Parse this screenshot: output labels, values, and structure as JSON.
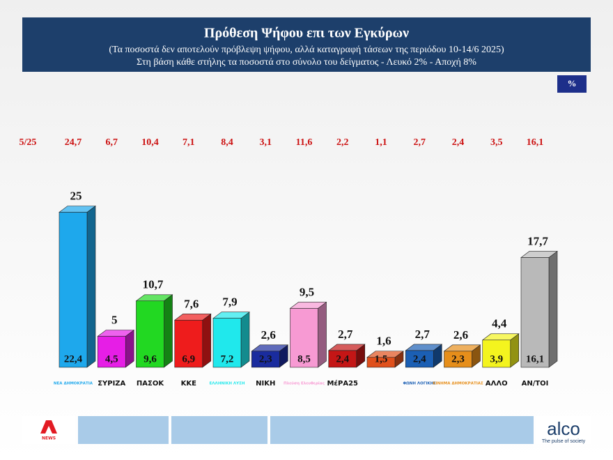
{
  "chart_data": {
    "type": "bar3d",
    "title": "Πρόθεση Ψήφου επι των Εγκύρων",
    "subtitle": "(Τα ποσοστά δεν αποτελούν πρόβλεψη ψήφου, αλλά καταγραφή τάσεων της περιόδου  10-14/6 2025)",
    "note": "Στη βάση κάθε στήλης τα ποσοστά στο σύνολο του δείγματος - Λευκό 2% - Αποχή 8%",
    "unit_badge": "%",
    "categories": [
      "ΝΕΑ ΔΗΜΟΚΡΑΤΙΑ",
      "ΣΥΡΙΖΑ",
      "ΠΑΣΟΚ",
      "ΚΚΕ",
      "ΕΛΛΗΝΙΚΗ ΛΥΣΗ",
      "ΝΙΚΗ",
      "Πλεύση Ελευθερίας",
      "ΜέΡΑ25",
      null,
      "ΦΩΝΗ ΛΟΓΙΚΗΣ",
      "ΚΙΝΗΜΑ ΔΗΜΟΚΡΑΤΙΑΣ",
      "ΑΛΛΟ",
      "ΑΝ/ΤΟΙ"
    ],
    "colors": [
      "#1ea8ec",
      "#e61ee6",
      "#22d822",
      "#ee1c1c",
      "#20e8ec",
      "#1a2c9e",
      "#f79ad3",
      "#c41616",
      "#e0501c",
      "#1b5fb4",
      "#e68e1a",
      "#f4f41e",
      "#b9b9b9"
    ],
    "series": [
      {
        "name": "5/25",
        "color": "#cc1111",
        "values": [
          24.7,
          6.7,
          10.4,
          7.1,
          8.4,
          3.1,
          11.6,
          2.2,
          1.1,
          2.7,
          2.4,
          3.5,
          16.1
        ],
        "value_labels": [
          "24,7",
          "6,7",
          "10,4",
          "7,1",
          "8,4",
          "3,1",
          "11,6",
          "2,2",
          "1,1",
          "2,7",
          "2,4",
          "3,5",
          "16,1"
        ]
      },
      {
        "values": [
          25,
          5,
          10.7,
          7.6,
          7.9,
          2.6,
          9.5,
          2.7,
          1.6,
          2.7,
          2.6,
          4.4,
          17.7
        ],
        "value_labels": [
          "25",
          "5",
          "10,7",
          "7,6",
          "7,9",
          "2,6",
          "9,5",
          "2,7",
          "1,6",
          "2,7",
          "2,6",
          "4,4",
          "17,7"
        ]
      },
      {
        "values": [
          22.4,
          4.5,
          9.6,
          6.9,
          7.2,
          2.3,
          8.5,
          2.4,
          1.5,
          2.4,
          2.3,
          3.9,
          16.1
        ],
        "value_labels": [
          "22,4",
          "4,5",
          "9,6",
          "6,9",
          "7,2",
          "2,3",
          "8,5",
          "2,4",
          "1,5",
          "2,4",
          "2,3",
          "3,9",
          "16,1"
        ]
      }
    ]
  },
  "footer": {
    "brand": "alco",
    "tagline": "The pulse of society",
    "channel": "NEWS"
  }
}
